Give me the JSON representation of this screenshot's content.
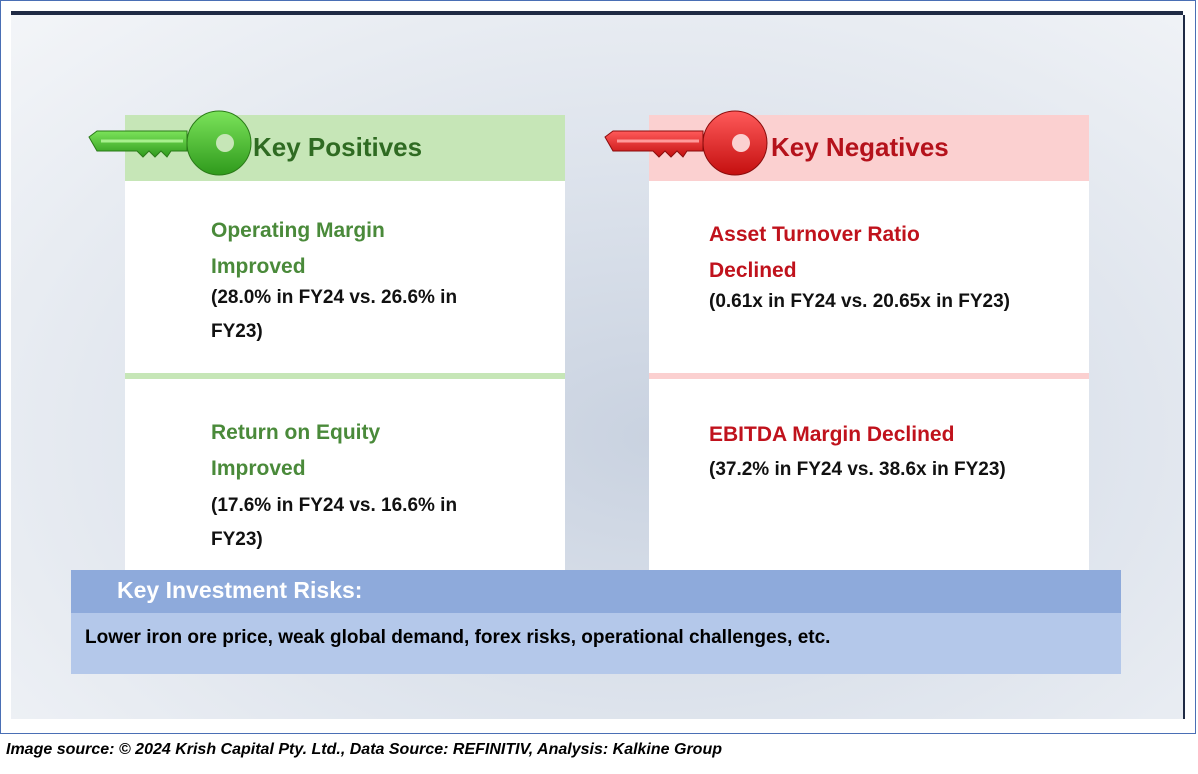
{
  "positives": {
    "header": "Key Positives",
    "color": "#c6e6b7",
    "accent": "#4a8a3a",
    "items": [
      {
        "title": "Operating Margin Improved",
        "detail": "(28.0% in FY24 vs. 26.6% in FY23)"
      },
      {
        "title": "Return on Equity Improved",
        "detail": "(17.6% in FY24 vs. 16.6% in FY23)"
      }
    ]
  },
  "negatives": {
    "header": "Key Negatives",
    "color": "#fbd0d0",
    "accent": "#c0121c",
    "items": [
      {
        "title": "Asset Turnover Ratio Declined",
        "detail": "(0.61x in FY24 vs. 20.65x in FY23)"
      },
      {
        "title": "EBITDA Margin Declined",
        "detail": "(37.2% in FY24 vs. 38.6x in FY23)"
      }
    ]
  },
  "risks": {
    "header": "Key Investment Risks:",
    "text": "Lower iron ore price, weak global demand, forex risks, operational challenges, etc."
  },
  "footer": "Image source: © 2024 Krish Capital Pty. Ltd., Data Source: REFINITIV, Analysis: Kalkine Group",
  "icons": {
    "positive_key": "green-key-icon",
    "negative_key": "red-key-icon"
  }
}
